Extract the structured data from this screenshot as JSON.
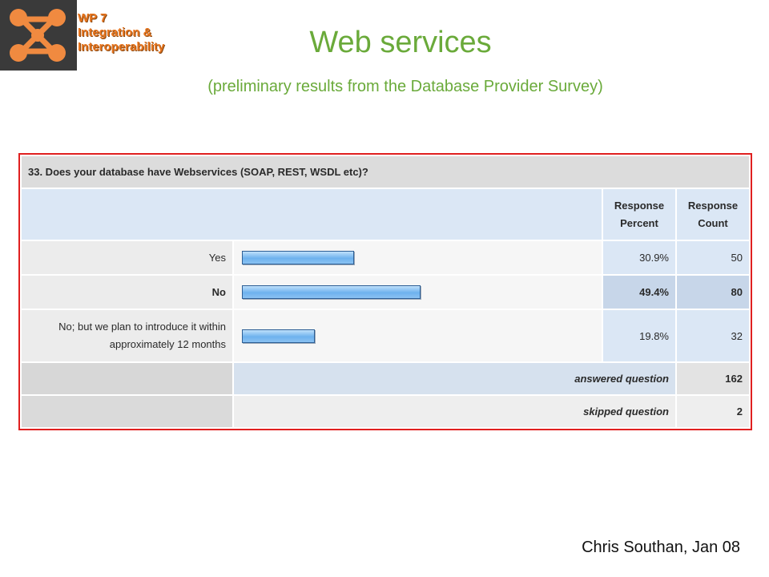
{
  "header": {
    "wp_lines": [
      "WP 7",
      "Integration &",
      "Interoperability"
    ],
    "title": "Web services",
    "subtitle": "(preliminary results from the Database Provider Survey)"
  },
  "chart_data": {
    "type": "bar",
    "title": "33. Does your database have Webservices (SOAP, REST, WSDL etc)?",
    "columns": [
      "Response Percent",
      "Response Count"
    ],
    "categories": [
      "Yes",
      "No",
      "No; but we plan to introduce it within approximately 12 months"
    ],
    "values": [
      30.9,
      49.4,
      19.8
    ],
    "percent_labels": [
      "30.9%",
      "49.4%",
      "19.8%"
    ],
    "counts": [
      50,
      80,
      32
    ],
    "selected_index": 1,
    "xlim": [
      0,
      100
    ],
    "answered_label": "answered question",
    "answered": 162,
    "skipped_label": "skipped question",
    "skipped": 2
  },
  "footer": {
    "credit": "Chris Southan, Jan 08"
  },
  "colors": {
    "title_green": "#6aaa3a",
    "wp_orange": "#e8741c",
    "frame_red": "#e02020",
    "bar_blue": "#6eb2ee"
  }
}
